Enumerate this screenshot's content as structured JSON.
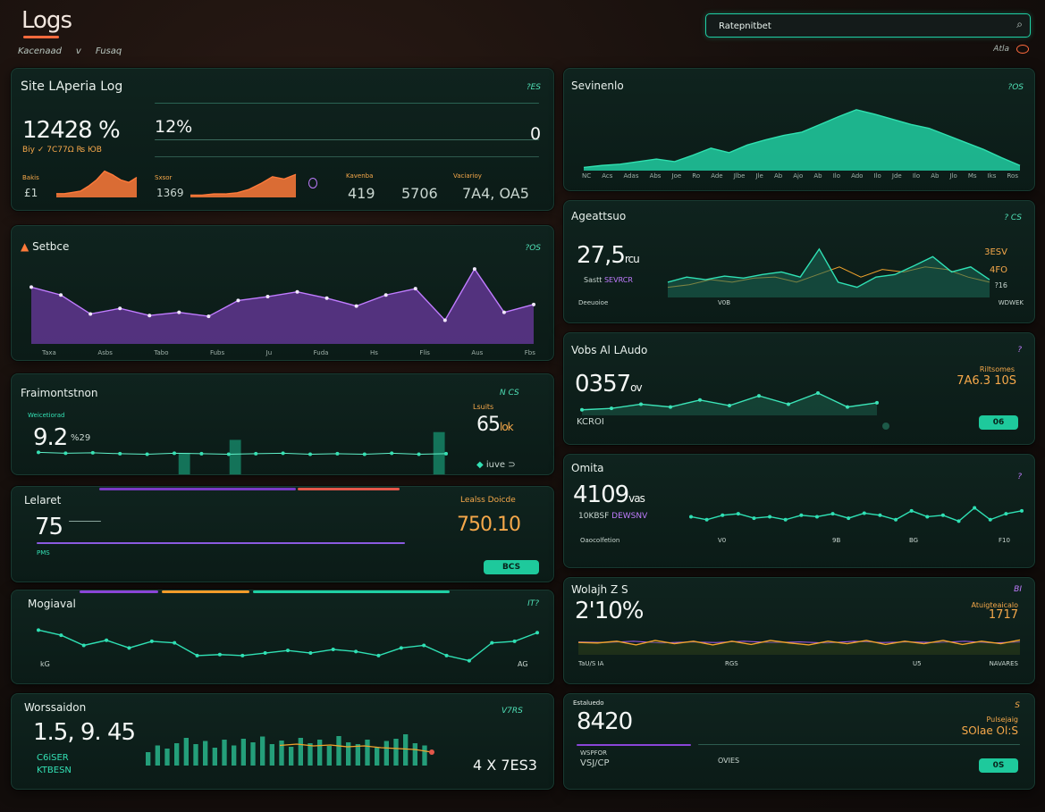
{
  "header": {
    "title": "Logs",
    "breadcrumbs": [
      "Kacenaad",
      "v",
      "Fusaq"
    ],
    "search_value": "Ratepnitbet",
    "top_actions_label": "Atla"
  },
  "panels": {
    "site_log": {
      "title": "Site LAperia Log",
      "meta": "?ES",
      "value_main": "12428 %",
      "value_sub": "Biy ✓ 7C77Ω ₨ ЮB",
      "value_secondary": "12%",
      "value_right": "0",
      "stat_labels": [
        "Bakis",
        "Sxsor",
        "Kavenba",
        "Vaciarioy"
      ],
      "stats": [
        "£1",
        "1369",
        "419",
        "5706",
        "7A4, OA5"
      ],
      "charts": [
        {
          "color": "#ff7a3a",
          "values": [
            3,
            3,
            4,
            5,
            9,
            14,
            21,
            18,
            14,
            12,
            16
          ]
        },
        {
          "color": "#ff7a3a",
          "values": [
            2,
            2,
            3,
            3,
            4,
            7,
            12,
            18,
            16,
            20
          ]
        }
      ]
    },
    "services": {
      "title": "Sevinenlo",
      "meta": "?OS",
      "x_labels": [
        "NC",
        "Acs",
        "Adas",
        "Abs",
        "Joe",
        "Ro",
        "Ade",
        "Jlbe",
        "Jle",
        "Ab",
        "Ajo",
        "Ab",
        "Ilo",
        "Ado",
        "Ilo",
        "Jde",
        "Ilo",
        "Ab",
        "Jlo",
        "Ms",
        "Iks",
        "Ros"
      ],
      "values": [
        5,
        8,
        10,
        14,
        18,
        14,
        24,
        35,
        28,
        40,
        48,
        55,
        60,
        72,
        84,
        95,
        88,
        80,
        72,
        66,
        55,
        44,
        33,
        20,
        8
      ]
    },
    "services_left": {
      "title": "Setbce",
      "meta": "?OS",
      "x_labels": [
        "Taxa",
        "Asbs",
        "Tabo",
        "Fubs",
        "Ju",
        "Fuda",
        "Hs",
        "Flis",
        "Aus",
        "Fbs"
      ],
      "values": [
        72,
        62,
        38,
        45,
        36,
        40,
        35,
        55,
        60,
        66,
        58,
        48,
        62,
        70,
        30,
        95,
        40,
        50
      ]
    },
    "api_auth": {
      "title": "Ageattsuo",
      "meta": "? CS",
      "value_main": "27,5",
      "value_unit": "rcu",
      "value_sub": "Sastt",
      "value_sub_hl": "SEVRCR",
      "right_values": [
        "3ESV",
        "4FO",
        "?16"
      ],
      "footer_labels": [
        "Deeuoioe",
        "V0B",
        "WDWEK"
      ],
      "series_teal": [
        30,
        40,
        35,
        42,
        38,
        45,
        50,
        40,
        95,
        30,
        20,
        40,
        45,
        62,
        80,
        50,
        60,
        35
      ],
      "series_orange": [
        20,
        25,
        35,
        30,
        38,
        40,
        30,
        45,
        60,
        40,
        55,
        50,
        60,
        55,
        40,
        30
      ]
    },
    "ratemonitor": {
      "title": "Fraimontstnon",
      "meta": "N CS",
      "value_main": "9.2",
      "value_sub": "%29",
      "label_small": "Weicetiorad",
      "right_label": "Lsuits",
      "right_value": "65",
      "right_unit": "lok",
      "footer_right": "iuve ⊃",
      "bars": [
        0,
        0,
        0,
        0,
        0,
        0,
        0,
        0,
        0,
        0,
        0,
        45,
        0,
        0,
        0,
        70,
        0,
        0,
        0,
        0,
        0,
        0,
        0,
        0,
        0,
        0,
        0,
        0,
        0,
        0,
        0,
        85
      ],
      "line": [
        50,
        48,
        49,
        47,
        46,
        48,
        47,
        46,
        47,
        48,
        46,
        47,
        46,
        48,
        46,
        47
      ]
    },
    "web_auth": {
      "title": "Vobs Al LAudo",
      "meta": "?",
      "value_main": "0357",
      "value_unit": "ov",
      "value_sub": "KCROI",
      "right_label": "Riltsomes",
      "right_value": "7A6.3 10S",
      "pill_label": "06",
      "series": [
        20,
        25,
        40,
        30,
        55,
        35,
        70,
        40,
        80,
        30,
        45
      ]
    },
    "latest": {
      "title": "Lelaret",
      "value_main": "75",
      "right_label": "Lealss Doicde",
      "right_value": "750.10",
      "footer": "PMS",
      "pill_label": "BCS"
    },
    "omita": {
      "title": "Omita",
      "meta": "?",
      "value_main": "4109",
      "value_unit": "vas",
      "value_sub": "10KBSF",
      "value_sub_hl": "DEWSNV",
      "footer_labels": [
        "Oaocolfetion",
        "V0",
        "9B",
        "BG",
        "F10"
      ],
      "series": [
        50,
        40,
        55,
        60,
        45,
        50,
        40,
        55,
        50,
        60,
        45,
        62,
        55,
        40,
        70,
        50,
        55,
        35,
        80,
        40,
        60,
        70
      ]
    },
    "msgwal": {
      "title": "Mogiaval",
      "meta": "IT?",
      "labels": [
        "kG",
        "AG"
      ],
      "series": [
        80,
        70,
        50,
        60,
        45,
        58,
        55,
        30,
        32,
        30,
        35,
        40,
        35,
        42,
        38,
        30,
        45,
        50,
        30,
        20,
        55,
        58,
        75
      ]
    },
    "weight": {
      "title": "Wolajh Z S",
      "meta": "BI",
      "value_main": "2'10%",
      "right_label": "Atuigteaicalo",
      "right_value": "1717",
      "footer_labels": [
        "TaU/S IA",
        "RGS",
        "U5",
        "NAVARES"
      ],
      "series_purple": [
        52,
        50,
        55,
        48,
        52,
        50,
        55,
        50,
        52,
        48,
        55,
        50,
        52,
        50,
        55,
        48,
        52
      ],
      "series_orange": [
        50,
        48,
        55,
        40,
        58,
        45,
        55,
        40,
        55,
        42,
        58,
        48,
        40,
        55,
        45,
        58,
        42,
        55,
        45,
        58,
        42,
        55,
        45,
        60
      ]
    },
    "websidon": {
      "title": "Worssaidon",
      "meta": "V7RS",
      "value_main": "1.5, 9. 45",
      "value_sub1": "C6iSER",
      "value_sub2": "KTBESN",
      "right_value": "4 X 7ES3",
      "bars": [
        30,
        45,
        38,
        50,
        62,
        48,
        55,
        40,
        58,
        45,
        60,
        52,
        65,
        48,
        56,
        42,
        62,
        50,
        58,
        44,
        66,
        52,
        48,
        58,
        40,
        55,
        60,
        70,
        50,
        45
      ],
      "line": [
        45,
        48,
        44,
        46,
        42,
        44,
        40,
        38,
        36,
        30
      ]
    },
    "bottom_right": {
      "title": "Estaluedo",
      "meta": "S",
      "value_main": "8420",
      "value_unit": "",
      "value_sub": "WSPFOR",
      "value_sub2": "VSJ/CP",
      "mid_label": "OVIES",
      "right_label": "Pulsejaig",
      "right_value": "SOlae Ol:S",
      "pill_label": "0S"
    }
  },
  "colors": {
    "teal": "#1fd6a6",
    "orange": "#ff7a3a",
    "purple": "#a45cf0",
    "amber": "#f1a32c",
    "panel": "#0f231e"
  }
}
